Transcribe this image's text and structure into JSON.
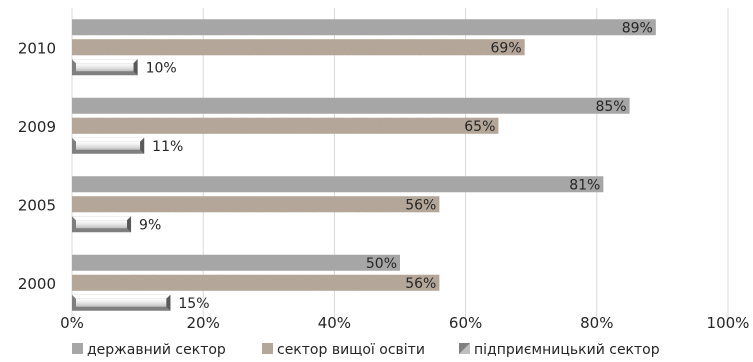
{
  "chart_data": {
    "type": "bar",
    "orientation": "horizontal",
    "categories": [
      "2010",
      "2009",
      "2005",
      "2000"
    ],
    "series": [
      {
        "name": "державний сектор",
        "values": [
          89,
          85,
          81,
          50
        ],
        "labels": [
          "89%",
          "85%",
          "81%",
          "50%"
        ],
        "color": "#a6a6a6",
        "pattern": "solid"
      },
      {
        "name": "сектор вищої освіти",
        "values": [
          69,
          65,
          56,
          56
        ],
        "labels": [
          "69%",
          "65%",
          "56%",
          "56%"
        ],
        "color": "#b5a594",
        "pattern": "granite"
      },
      {
        "name": "підприємницький сектор",
        "values": [
          10,
          11,
          9,
          15
        ],
        "labels": [
          "10%",
          "11%",
          "9%",
          "15%"
        ],
        "color": "#7f7f7f",
        "pattern": "beveled"
      }
    ],
    "x_ticks": [
      "0%",
      "20%",
      "40%",
      "60%",
      "80%",
      "100%"
    ],
    "xlim": [
      0,
      100
    ],
    "grid": true,
    "legend_position": "bottom"
  }
}
